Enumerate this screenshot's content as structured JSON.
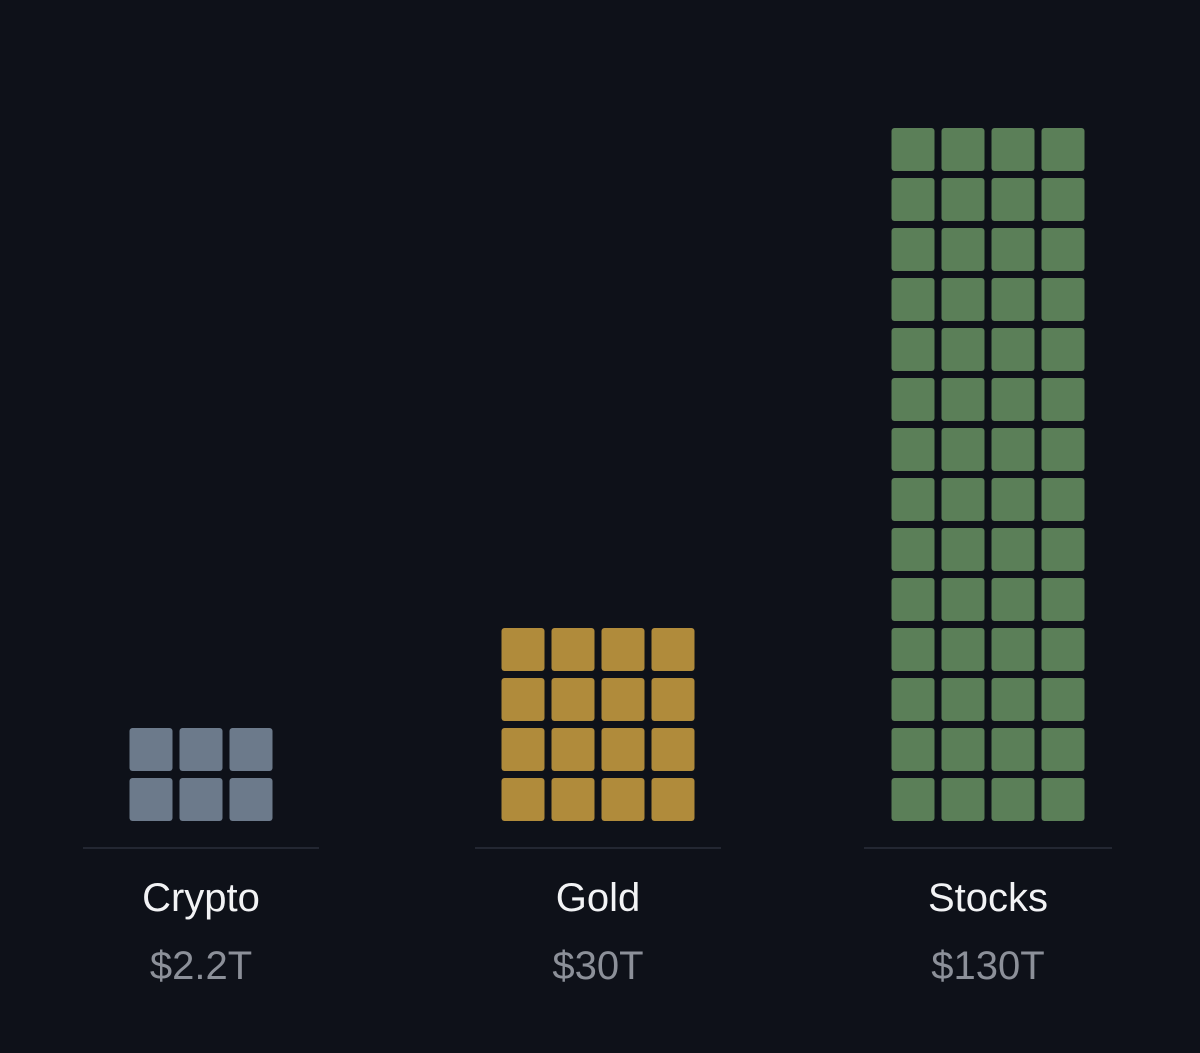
{
  "chart_data": {
    "type": "waffle",
    "categories": [
      "Crypto",
      "Gold",
      "Stocks"
    ],
    "values": [
      2.2,
      30,
      130
    ],
    "value_labels": [
      "$2.2T",
      "$30T",
      "$130T"
    ],
    "blocks": [
      6,
      16,
      56
    ],
    "colors": [
      "#6c7a8b",
      "#b08b3b",
      "#5b7f58"
    ]
  }
}
